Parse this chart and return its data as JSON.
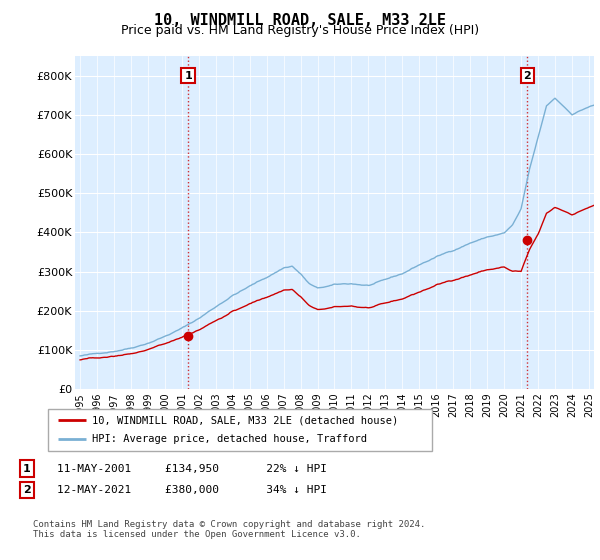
{
  "title": "10, WINDMILL ROAD, SALE, M33 2LE",
  "subtitle": "Price paid vs. HM Land Registry's House Price Index (HPI)",
  "ylim": [
    0,
    850000
  ],
  "yticks": [
    0,
    100000,
    200000,
    300000,
    400000,
    500000,
    600000,
    700000,
    800000
  ],
  "ytick_labels": [
    "£0",
    "£100K",
    "£200K",
    "£300K",
    "£400K",
    "£500K",
    "£600K",
    "£700K",
    "£800K"
  ],
  "hpi_color": "#7ab0d4",
  "price_color": "#cc0000",
  "sale1_x": 2001.37,
  "sale2_x": 2021.37,
  "sale1_price": 134950,
  "sale2_price": 380000,
  "legend_line1": "10, WINDMILL ROAD, SALE, M33 2LE (detached house)",
  "legend_line2": "HPI: Average price, detached house, Trafford",
  "ann1_text": "11-MAY-2001     £134,950       22% ↓ HPI",
  "ann2_text": "12-MAY-2021     £380,000       34% ↓ HPI",
  "footer": "Contains HM Land Registry data © Crown copyright and database right 2024.\nThis data is licensed under the Open Government Licence v3.0.",
  "x_start_year": 1995,
  "x_end_year": 2025,
  "bg_color": "#ddeeff"
}
